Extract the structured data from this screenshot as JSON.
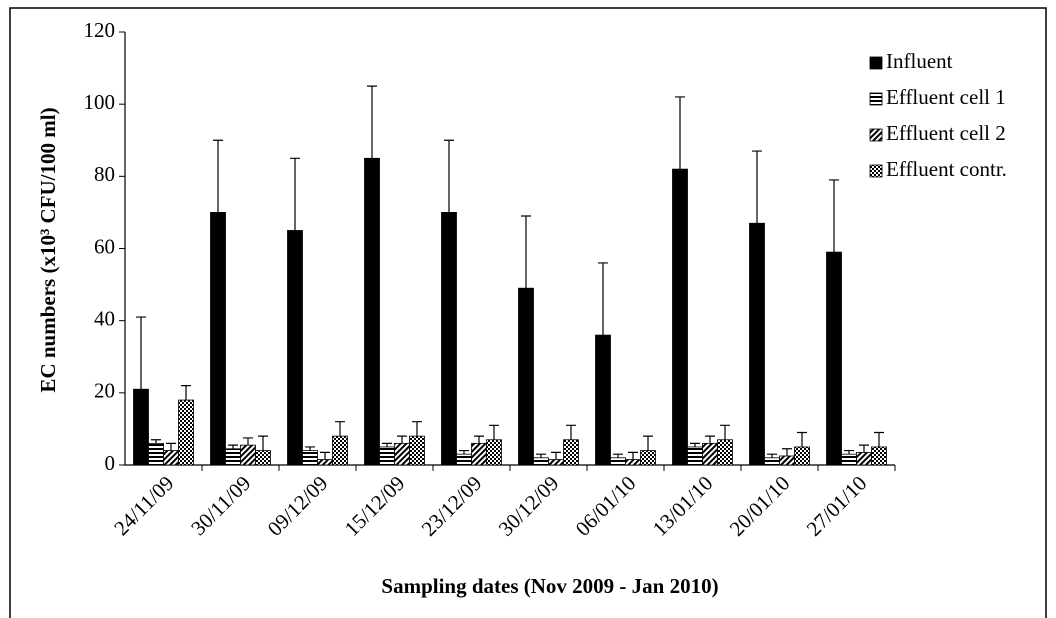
{
  "chart_data": {
    "type": "bar",
    "xlabel": "Sampling dates (Nov 2009 - Jan 2010)",
    "ylabel": "EC numbers (x10³ CFU/100 ml)",
    "categories": [
      "24/11/09",
      "30/11/09",
      "09/12/09",
      "15/12/09",
      "23/12/09",
      "30/12/09",
      "06/01/10",
      "13/01/10",
      "20/01/10",
      "27/01/10"
    ],
    "series": [
      {
        "name": "Influent",
        "color": "#000000",
        "pattern": "solid",
        "values": [
          21,
          70,
          65,
          85,
          70,
          49,
          36,
          82,
          67,
          59
        ],
        "errors": [
          20,
          20,
          20,
          20,
          20,
          20,
          20,
          20,
          20,
          20
        ]
      },
      {
        "name": "Effluent cell 1",
        "color": "#000000",
        "pattern": "horizontal",
        "values": [
          6,
          4.5,
          4,
          5,
          3,
          2,
          2,
          5,
          2,
          3
        ],
        "errors": [
          1,
          1,
          1,
          1,
          1,
          1,
          1,
          1,
          1,
          1
        ]
      },
      {
        "name": "Effluent cell 2",
        "color": "#000000",
        "pattern": "diagonal",
        "values": [
          4,
          5.5,
          1.5,
          6,
          6,
          1.5,
          1.5,
          6,
          2.5,
          3.5
        ],
        "errors": [
          2,
          2,
          2,
          2,
          2,
          2,
          2,
          2,
          2,
          2
        ]
      },
      {
        "name": "Effluent contr.",
        "color": "#000000",
        "pattern": "checker",
        "values": [
          18,
          4,
          8,
          8,
          7,
          7,
          4,
          7,
          5,
          5
        ],
        "errors": [
          4,
          4,
          4,
          4,
          4,
          4,
          4,
          4,
          4,
          4
        ]
      }
    ],
    "ylim": [
      0,
      120
    ],
    "yticks": [
      0,
      20,
      40,
      60,
      80,
      100,
      120
    ],
    "grid": false,
    "legend": "right"
  }
}
